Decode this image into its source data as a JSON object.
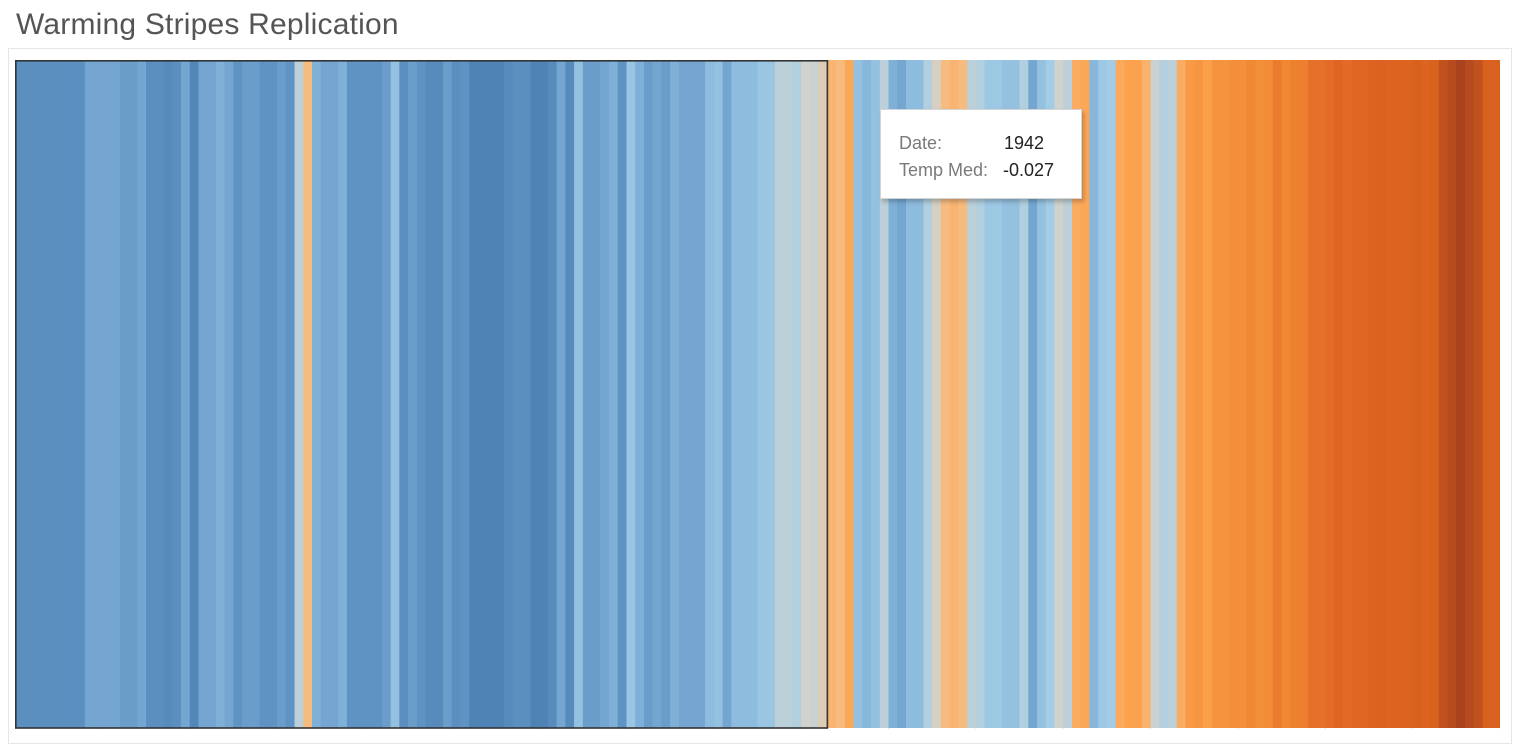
{
  "header": {
    "title": "Warming Stripes Replication"
  },
  "tooltip": {
    "date_label": "Date:",
    "date_value": "1942",
    "temp_label": "Temp Med:",
    "temp_value": "-0.027"
  },
  "chart_data": {
    "type": "heatmap",
    "title": "Warming Stripes Replication",
    "x_field": "Date",
    "value_field": "Temp Med",
    "x_start": 1850,
    "x_end": 2019,
    "highlighted": {
      "x": 1942,
      "value": -0.027
    },
    "selection_range": [
      1850,
      1942
    ],
    "color_scale": {
      "low": "#4e82b4",
      "mid": "#d9d2c5",
      "high": "#a33e1f"
    },
    "values": [
      -0.38,
      -0.38,
      -0.38,
      -0.38,
      -0.38,
      -0.38,
      -0.38,
      -0.38,
      -0.3,
      -0.3,
      -0.3,
      -0.3,
      -0.33,
      -0.33,
      -0.3,
      -0.38,
      -0.38,
      -0.4,
      -0.38,
      -0.3,
      -0.42,
      -0.3,
      -0.3,
      -0.27,
      -0.3,
      -0.36,
      -0.33,
      -0.33,
      -0.36,
      -0.36,
      -0.33,
      -0.36,
      -0.1,
      0.02,
      -0.27,
      -0.3,
      -0.3,
      -0.27,
      -0.36,
      -0.36,
      -0.36,
      -0.36,
      -0.33,
      -0.2,
      -0.38,
      -0.33,
      -0.36,
      -0.4,
      -0.4,
      -0.33,
      -0.38,
      -0.36,
      -0.44,
      -0.44,
      -0.44,
      -0.44,
      -0.4,
      -0.38,
      -0.38,
      -0.44,
      -0.44,
      -0.4,
      -0.3,
      -0.4,
      -0.2,
      -0.33,
      -0.33,
      -0.3,
      -0.27,
      -0.36,
      -0.18,
      -0.27,
      -0.33,
      -0.3,
      -0.33,
      -0.27,
      -0.3,
      -0.3,
      -0.3,
      -0.22,
      -0.2,
      -0.3,
      -0.22,
      -0.22,
      -0.22,
      -0.18,
      -0.18,
      -0.1,
      -0.1,
      -0.12,
      -0.05,
      -0.07,
      -0.027,
      0.05,
      0.02,
      0.1,
      -0.2,
      -0.24,
      -0.2,
      -0.1,
      -0.27,
      -0.3,
      -0.22,
      -0.22,
      -0.12,
      -0.04,
      0.02,
      0.05,
      0.02,
      -0.1,
      -0.12,
      -0.17,
      -0.17,
      -0.2,
      -0.2,
      -0.12,
      -0.3,
      -0.2,
      -0.15,
      -0.05,
      -0.1,
      0.08,
      0.1,
      -0.24,
      -0.17,
      -0.15,
      0.09,
      0.12,
      0.12,
      0.06,
      -0.07,
      -0.12,
      -0.1,
      0.08,
      0.18,
      0.2,
      0.14,
      0.22,
      0.22,
      0.25,
      0.24,
      0.3,
      0.25,
      0.27,
      0.35,
      0.3,
      0.33,
      0.33,
      0.4,
      0.4,
      0.42,
      0.45,
      0.42,
      0.45,
      0.45,
      0.5,
      0.52,
      0.47,
      0.5,
      0.5,
      0.55,
      0.5,
      0.55,
      0.6,
      0.62,
      0.65,
      0.62,
      0.6,
      0.55,
      0.55
    ]
  }
}
